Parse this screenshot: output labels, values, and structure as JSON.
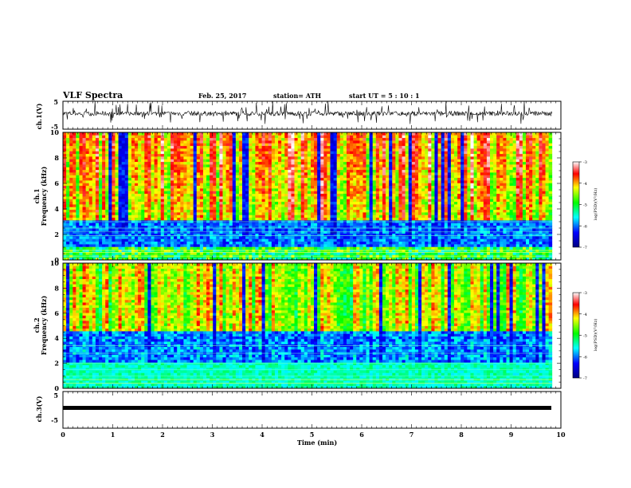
{
  "header": {
    "title": "VLF Spectra",
    "date": "Feb. 25, 2017",
    "station": "station= ATH",
    "start": "start UT = 5 : 10 : 1"
  },
  "chart_data": [
    {
      "type": "line",
      "name": "ch1-waveform",
      "ylabel": "ch.1(V)",
      "ylim": [
        -5,
        5
      ],
      "yticks": [
        "5",
        "-5"
      ],
      "xlim": [
        0,
        10
      ],
      "line_color": "#000000"
    },
    {
      "type": "heatmap",
      "name": "ch1-spectrogram",
      "ylabel": "ch.1\nFrequency (kHz)",
      "xlim": [
        0,
        10
      ],
      "data_extent_x": [
        0,
        9.82
      ],
      "ylim": [
        0,
        10
      ],
      "yticks": [
        "0",
        "2",
        "4",
        "6",
        "8",
        "10"
      ],
      "colorbar": {
        "label": "log(PSD)(V²/Hz)",
        "range": [
          -7,
          -3
        ],
        "ticks": [
          "-3",
          "-4",
          "-5",
          "-6",
          "-7"
        ],
        "colors": [
          "#000080",
          "#0000ff",
          "#00ffff",
          "#00ff00",
          "#ffff00",
          "#ff0000",
          "#ffffff"
        ]
      }
    },
    {
      "type": "heatmap",
      "name": "ch2-spectrogram",
      "ylabel": "ch.2\nFrequency (kHz)",
      "xlim": [
        0,
        10
      ],
      "data_extent_x": [
        0,
        9.82
      ],
      "ylim": [
        0,
        10
      ],
      "yticks": [
        "0",
        "2",
        "4",
        "6",
        "8",
        "10"
      ],
      "colorbar": {
        "label": "log(PSD)(V²/Hz)",
        "range": [
          -7,
          -3
        ],
        "ticks": [
          "-3",
          "-4",
          "-5",
          "-6",
          "-7"
        ],
        "colors": [
          "#000080",
          "#0000ff",
          "#00ffff",
          "#00ff00",
          "#ffff00",
          "#ff0000",
          "#ffffff"
        ]
      }
    },
    {
      "type": "line",
      "name": "ch3-waveform",
      "ylabel": "ch.3(V)",
      "ylim": [
        -5,
        5
      ],
      "yticks": [
        "5",
        "-5"
      ],
      "xlim": [
        0,
        10
      ],
      "line_color": "#000000"
    }
  ],
  "xaxis": {
    "label": "Time (min)",
    "range": [
      0,
      10
    ],
    "ticks": [
      "0",
      "1",
      "2",
      "3",
      "4",
      "5",
      "6",
      "7",
      "8",
      "9",
      "10"
    ]
  }
}
